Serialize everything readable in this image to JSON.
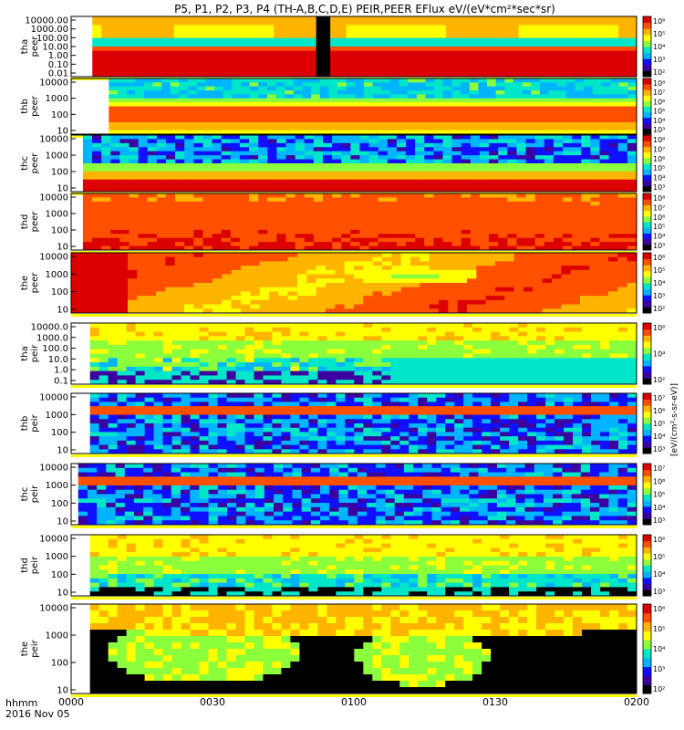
{
  "title": "P5, P1, P2, P3, P4 (TH-A,B,C,D,E) PEIR,PEER EFlux eV/(eV*cm²*sec*sr)",
  "colorbar_unit": "[eV/(cm²-s-sr-eV)]",
  "x_axis": {
    "label_line1": "hhmm",
    "label_line2": "2016 Nov 05",
    "ticks": [
      {
        "label": "0000",
        "minutes": 0
      },
      {
        "label": "0030",
        "minutes": 30
      },
      {
        "label": "0100",
        "minutes": 60
      },
      {
        "label": "0130",
        "minutes": 90
      },
      {
        "label": "0200",
        "minutes": 120
      }
    ],
    "range_minutes": [
      0,
      120
    ]
  },
  "colors": {
    "scale": [
      "#000000",
      "#3c00a0",
      "#1010ff",
      "#00b4ff",
      "#00e6c8",
      "#8cff3c",
      "#ffff00",
      "#ffb400",
      "#ff5000",
      "#dc0000"
    ],
    "flag_yellow": "#ffff00",
    "flag_red": "#dc0000"
  },
  "chart_data": [
    {
      "type": "heatmap",
      "probe": "tha",
      "product": "peer",
      "ylabel": "tha\npeer",
      "yticks": [
        "10000.00",
        "1000.00",
        "100.00",
        "10.00",
        "1.00",
        "0.10",
        "0.01"
      ],
      "ylim": [
        0.01,
        20000
      ],
      "yscale": "log",
      "cbar_ticks": [
        "10⁶",
        "10⁵",
        "10⁴",
        "10³",
        "10²"
      ],
      "data_start_minutes": 4.5,
      "pattern": "bands_high",
      "gap_minutes": [
        52,
        55
      ]
    },
    {
      "type": "heatmap",
      "probe": "thb",
      "product": "peer",
      "ylabel": "thb\npeer",
      "yticks": [
        "10000",
        "1000",
        "100",
        "10"
      ],
      "ylim": [
        5,
        20000
      ],
      "yscale": "log",
      "cbar_ticks": [
        "10⁸",
        "10⁷",
        "10⁶",
        "10⁵",
        "10⁴",
        "10³"
      ],
      "data_start_minutes": 8,
      "pattern": "bands_mid"
    },
    {
      "type": "heatmap",
      "probe": "thc",
      "product": "peer",
      "ylabel": "thc\npeer",
      "yticks": [
        "10000",
        "1000",
        "100",
        "10"
      ],
      "ylim": [
        5,
        20000
      ],
      "yscale": "log",
      "cbar_ticks": [
        "10⁸",
        "10⁷",
        "10⁶",
        "10⁵",
        "10⁴",
        "10³"
      ],
      "data_start_minutes": 2.5,
      "pattern": "noise_top"
    },
    {
      "type": "heatmap",
      "probe": "thd",
      "product": "peer",
      "ylabel": "thd\npeer",
      "yticks": [
        "10000",
        "1000",
        "100",
        "10"
      ],
      "ylim": [
        5,
        20000
      ],
      "yscale": "log",
      "cbar_ticks": [
        "10⁸",
        "10⁷",
        "10⁶",
        "10⁵",
        "10⁴",
        "10³"
      ],
      "data_start_minutes": 2.5,
      "pattern": "warm"
    },
    {
      "type": "heatmap",
      "probe": "the",
      "product": "peer",
      "ylabel": "the\npeer",
      "yticks": [
        "10000",
        "1000",
        "100",
        "10"
      ],
      "ylim": [
        5,
        20000
      ],
      "yscale": "log",
      "cbar_ticks": [
        "10⁶",
        "10⁵",
        "10⁴",
        "10³",
        "10²"
      ],
      "data_start_minutes": 0,
      "pattern": "warm_patch"
    },
    {
      "type": "heatmap",
      "probe": "tha",
      "product": "peir",
      "ylabel": "tha\npeir",
      "yticks": [
        "10000.0",
        "1000.0",
        "100.0",
        "10.0",
        "1.0",
        "0.1"
      ],
      "ylim": [
        0.05,
        20000
      ],
      "yscale": "log",
      "cbar_ticks": [
        "10⁶",
        "10⁴",
        "10²"
      ],
      "data_start_minutes": 4,
      "pattern": "ion_low"
    },
    {
      "type": "heatmap",
      "probe": "thb",
      "product": "peir",
      "ylabel": "thb\npeir",
      "yticks": [
        "10000",
        "1000",
        "100",
        "10"
      ],
      "ylim": [
        5,
        20000
      ],
      "yscale": "log",
      "cbar_ticks": [
        "10⁷",
        "10⁶",
        "10⁵",
        "10⁴",
        "10³"
      ],
      "data_start_minutes": 4,
      "pattern": "noise_band"
    },
    {
      "type": "heatmap",
      "probe": "thc",
      "product": "peir",
      "ylabel": "thc\npeir",
      "yticks": [
        "10000",
        "1000",
        "100",
        "10"
      ],
      "ylim": [
        5,
        20000
      ],
      "yscale": "log",
      "cbar_ticks": [
        "10⁷",
        "10⁶",
        "10⁵",
        "10⁴",
        "10³"
      ],
      "data_start_minutes": 1.5,
      "pattern": "noise_band"
    },
    {
      "type": "heatmap",
      "probe": "thd",
      "product": "peir",
      "ylabel": "thd\npeir",
      "yticks": [
        "10000",
        "1000",
        "100",
        "10"
      ],
      "ylim": [
        5,
        20000
      ],
      "yscale": "log",
      "cbar_ticks": [
        "10⁶",
        "10⁵",
        "10⁴",
        "10³"
      ],
      "data_start_minutes": 4,
      "pattern": "ion_d"
    },
    {
      "type": "heatmap",
      "probe": "the",
      "product": "peir",
      "ylabel": "the\npeir",
      "yticks": [
        "10000",
        "1000",
        "100",
        "10"
      ],
      "ylim": [
        5,
        20000
      ],
      "yscale": "log",
      "cbar_ticks": [
        "10⁶",
        "10⁵",
        "10⁴",
        "10³",
        "10²"
      ],
      "data_start_minutes": 4,
      "pattern": "ion_e"
    }
  ]
}
